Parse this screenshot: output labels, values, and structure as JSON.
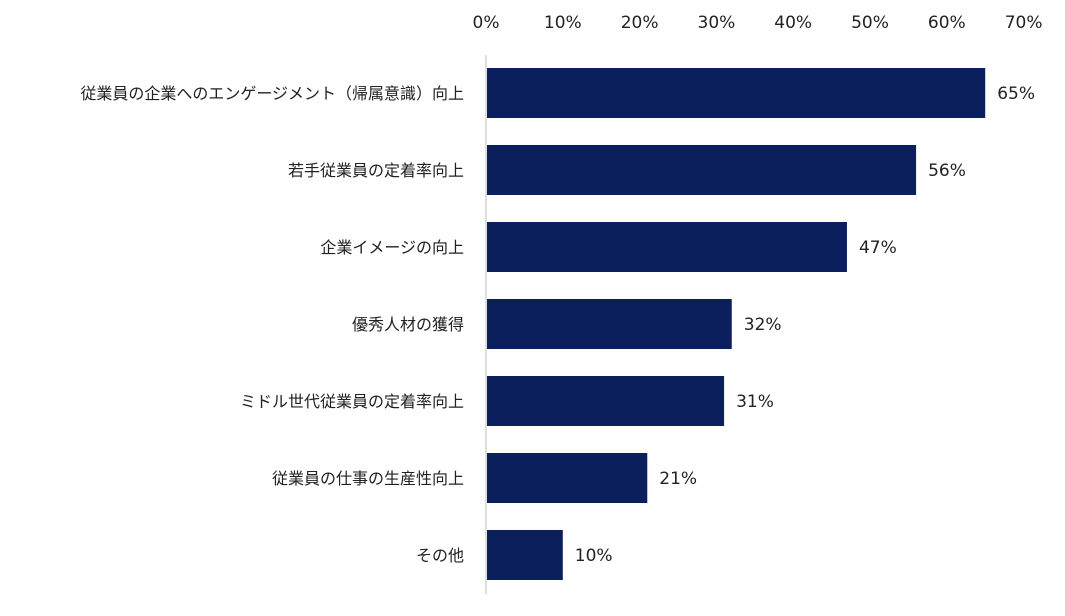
{
  "chart_data": {
    "type": "bar",
    "orientation": "horizontal",
    "categories": [
      "従業員の企業へのエンゲージメント（帰属意識）向上",
      "若手従業員の定着率向上",
      "企業イメージの向上",
      "優秀人材の獲得",
      "ミドル世代従業員の定着率向上",
      "従業員の仕事の生産性向上",
      "その他"
    ],
    "values": [
      65,
      56,
      47,
      32,
      31,
      21,
      10
    ],
    "data_labels": [
      "65%",
      "56%",
      "47%",
      "32%",
      "31%",
      "21%",
      "10%"
    ],
    "x_ticks": [
      "0%",
      "10%",
      "20%",
      "30%",
      "40%",
      "50%",
      "60%",
      "70%"
    ],
    "xlim": [
      0,
      70
    ],
    "x_axis_position": "top",
    "grid": false,
    "legend": "none",
    "bar_color": "#0b1f5c",
    "title": "",
    "xlabel": "",
    "ylabel": ""
  }
}
